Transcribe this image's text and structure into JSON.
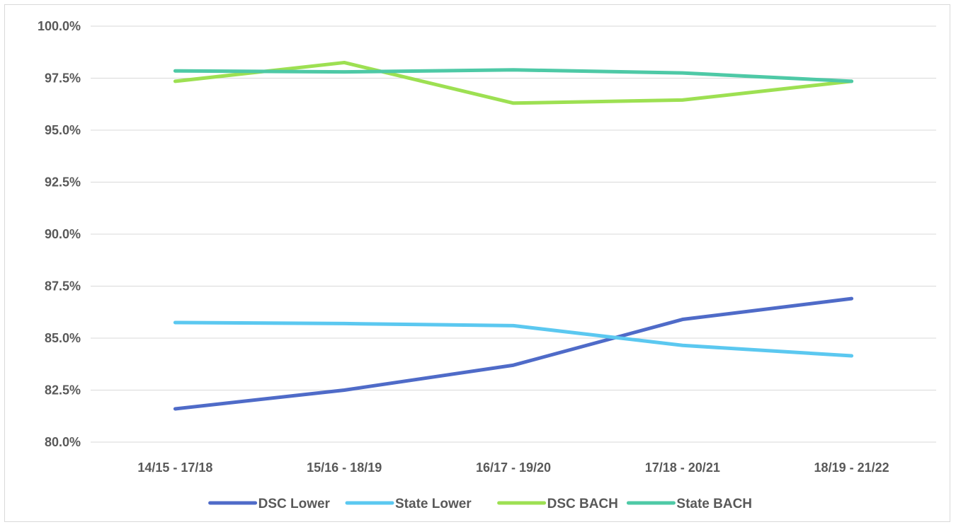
{
  "chart_data": {
    "type": "line",
    "categories": [
      "14/15 - 17/18",
      "15/16 - 18/19",
      "16/17 - 19/20",
      "17/18 - 20/21",
      "18/19 - 21/22"
    ],
    "ylim": [
      80.0,
      100.0
    ],
    "yticks": [
      80.0,
      82.5,
      85.0,
      87.5,
      90.0,
      92.5,
      95.0,
      97.5,
      100.0
    ],
    "ytick_labels": [
      "80.0%",
      "82.5%",
      "85.0%",
      "87.5%",
      "90.0%",
      "92.5%",
      "95.0%",
      "97.5%",
      "100.0%"
    ],
    "grid": "horizontal",
    "legend_position": "bottom",
    "series": [
      {
        "name": "DSC Lower",
        "color": "#4f6bc8",
        "values": [
          81.6,
          82.5,
          83.7,
          85.9,
          86.9
        ]
      },
      {
        "name": "State Lower",
        "color": "#5bc8f0",
        "values": [
          85.75,
          85.7,
          85.6,
          84.65,
          84.15
        ]
      },
      {
        "name": "DSC BACH",
        "color": "#9de052",
        "values": [
          97.35,
          98.25,
          96.3,
          96.45,
          97.35
        ]
      },
      {
        "name": "State BACH",
        "color": "#4ec9a6",
        "values": [
          97.85,
          97.8,
          97.9,
          97.75,
          97.35
        ]
      }
    ],
    "title": "",
    "xlabel": "",
    "ylabel": ""
  }
}
